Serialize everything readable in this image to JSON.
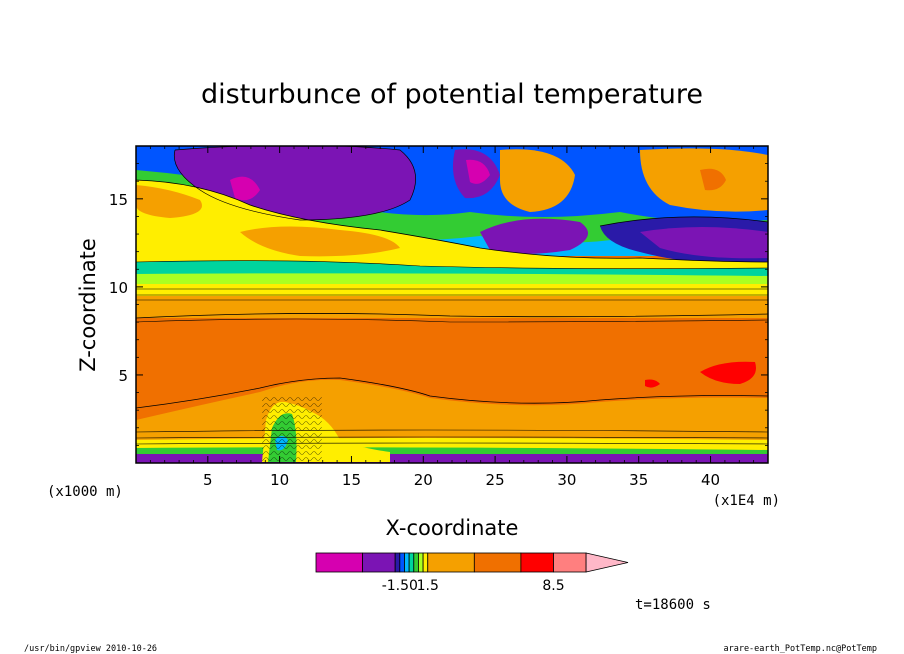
{
  "chart_data": {
    "type": "heatmap",
    "title": "disturbunce of potential temperature",
    "xlabel": "X-coordinate",
    "ylabel": "Z-coordinate",
    "x_unit_left": "(x1000 m)",
    "x_unit_right": "(x1E4 m)",
    "xlim": [
      0,
      44
    ],
    "ylim": [
      0,
      18
    ],
    "x_ticks": [
      "5",
      "10",
      "15",
      "20",
      "25",
      "30",
      "35",
      "40"
    ],
    "x_tick_values": [
      5,
      10,
      15,
      20,
      25,
      30,
      35,
      40
    ],
    "y_ticks": [
      "5",
      "10",
      "15"
    ],
    "y_tick_values": [
      5,
      10,
      15
    ],
    "colorbar": {
      "colors": [
        "#d600b0",
        "#7b14b4",
        "#2a1aa8",
        "#0055ff",
        "#00b8ff",
        "#00d49e",
        "#33cc33",
        "#aaff22",
        "#ffee00",
        "#f5a000",
        "#f07000",
        "#ff0000",
        "#ff7f7f",
        "#ffb8c8"
      ],
      "widths": [
        1.0,
        0.7,
        0.1,
        0.1,
        0.1,
        0.1,
        0.1,
        0.1,
        0.1,
        1.0,
        1.0,
        0.7,
        0.7,
        0.9
      ],
      "labels": [
        {
          "text": "-1.50",
          "value": -1.5
        },
        {
          "text": "1.5",
          "value": 1.5
        },
        {
          "text": "8.5",
          "value": 8.5
        }
      ]
    },
    "time_label": "t=18600 s"
  },
  "footer": {
    "left": "/usr/bin/gpview  2010-10-26",
    "right": "arare-earth_PotTemp.nc@PotTemp"
  }
}
